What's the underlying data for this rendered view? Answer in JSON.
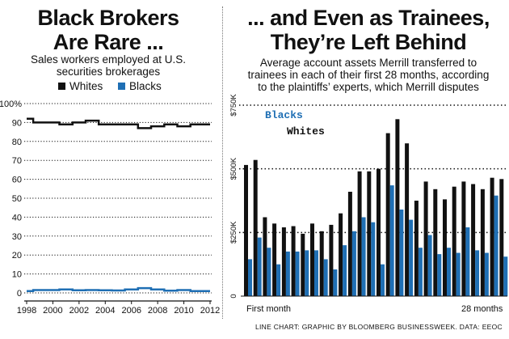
{
  "colors": {
    "whites": "#111111",
    "blacks": "#1f6fb4",
    "grid": "#111111"
  },
  "left": {
    "title_line1": "Black Brokers",
    "title_line2": "Are Rare ...",
    "subtitle_line1": "Sales workers employed at U.S.",
    "subtitle_line2": "securities brokerages",
    "legend_whites": "Whites",
    "legend_blacks": "Blacks"
  },
  "right": {
    "title_line1": "... and Even as Trainees,",
    "title_line2": "They’re Left Behind",
    "subtitle_line1": "Average account assets Merrill transferred to",
    "subtitle_line2": "trainees in each of their first 28 months, according",
    "subtitle_line3": "to the plaintiffs’ experts, which Merrill disputes",
    "legend_blacks": "Blacks",
    "legend_whites": "Whites",
    "first_label": "First month",
    "last_label": "28 months"
  },
  "credit": "LINE CHART: GRAPHIC BY BLOOMBERG BUSINESSWEEK. DATA: EEOC",
  "chart_data": [
    {
      "type": "line",
      "title": "Black Brokers Are Rare ...",
      "subtitle": "Sales workers employed at U.S. securities brokerages",
      "x": [
        1998,
        1999,
        2000,
        2001,
        2002,
        2003,
        2004,
        2005,
        2006,
        2007,
        2008,
        2009,
        2010,
        2011,
        2012
      ],
      "x_ticks": [
        1998,
        2000,
        2002,
        2004,
        2006,
        2008,
        2010,
        2012
      ],
      "y_ticks": [
        0,
        10,
        20,
        30,
        40,
        50,
        60,
        70,
        80,
        90,
        100
      ],
      "y_tick_labels": [
        "0",
        "10",
        "20",
        "30",
        "40",
        "50",
        "60",
        "70",
        "80",
        "90",
        "100%"
      ],
      "ylim": [
        0,
        100
      ],
      "series": [
        {
          "name": "Whites",
          "values": [
            92,
            90,
            90,
            89,
            90,
            91,
            89,
            89,
            89,
            87,
            88,
            89,
            88,
            89,
            89
          ]
        },
        {
          "name": "Blacks",
          "values": [
            1,
            1.5,
            1.5,
            1.8,
            1.4,
            1.5,
            1.4,
            1.3,
            1.8,
            2.5,
            1.8,
            1.2,
            1.5,
            1,
            1
          ]
        }
      ]
    },
    {
      "type": "bar",
      "title": "... and Even as Trainees, They’re Left Behind",
      "subtitle": "Average account assets Merrill transferred to trainees in each of their first 28 months, according to the plaintiffs’ experts, which Merrill disputes",
      "categories": [
        1,
        2,
        3,
        4,
        5,
        6,
        7,
        8,
        9,
        10,
        11,
        12,
        13,
        14,
        15,
        16,
        17,
        18,
        19,
        20,
        21,
        22,
        23,
        24,
        25,
        26,
        27,
        28
      ],
      "y_ticks": [
        0,
        250000,
        500000,
        750000
      ],
      "y_tick_labels": [
        "0",
        "$250K",
        "$500K",
        "$750K"
      ],
      "ylim": [
        0,
        750000
      ],
      "series": [
        {
          "name": "Whites",
          "values": [
            515000,
            535000,
            310000,
            285000,
            270000,
            275000,
            245000,
            285000,
            255000,
            280000,
            325000,
            410000,
            490000,
            490000,
            500000,
            640000,
            695000,
            600000,
            375000,
            450000,
            420000,
            380000,
            430000,
            450000,
            440000,
            420000,
            465000,
            460000
          ]
        },
        {
          "name": "Blacks",
          "values": [
            145000,
            230000,
            190000,
            125000,
            175000,
            175000,
            180000,
            180000,
            145000,
            105000,
            200000,
            255000,
            310000,
            290000,
            125000,
            435000,
            340000,
            300000,
            190000,
            240000,
            165000,
            190000,
            170000,
            270000,
            180000,
            170000,
            395000,
            155000
          ]
        }
      ]
    }
  ]
}
